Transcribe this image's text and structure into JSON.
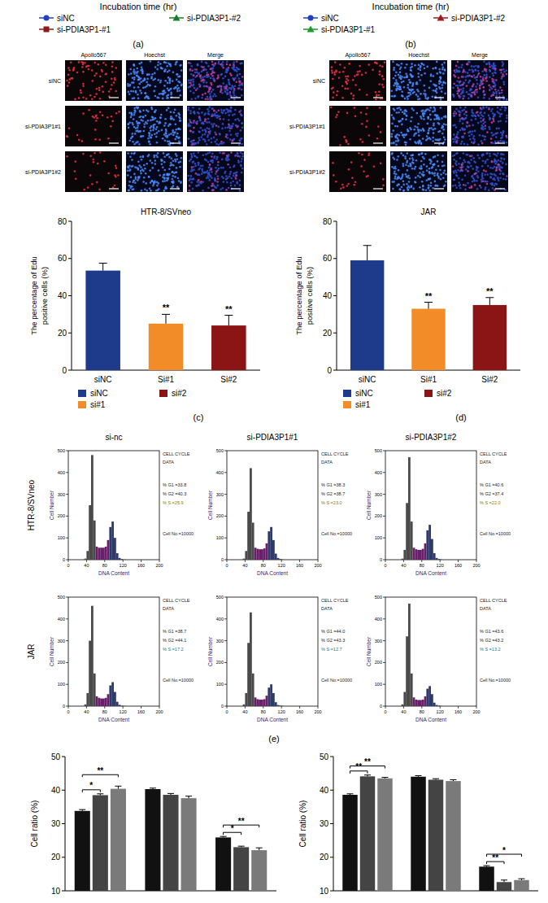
{
  "header_panels": [
    {
      "x_label": "Incubation time (hr)",
      "letter": "(a)",
      "legend": [
        {
          "name": "siNC",
          "color": "#2040c0",
          "marker": "circle"
        },
        {
          "name": "si-PDIA3P1-#2",
          "color": "#1a7a2a",
          "marker": "triangle"
        },
        {
          "name": "si-PDIA3P1-#1",
          "color": "#8b1a1a",
          "marker": "square"
        }
      ]
    },
    {
      "x_label": "Incubation time (hr)",
      "letter": "(b)",
      "legend": [
        {
          "name": "siNC",
          "color": "#2040c0",
          "marker": "circle"
        },
        {
          "name": "si-PDIA3P1-#2",
          "color": "#a01818",
          "marker": "triangle"
        },
        {
          "name": "si-PDIA3P1-#1",
          "color": "#1a9a2a",
          "marker": "triangle"
        }
      ]
    }
  ],
  "image_panels": [
    {
      "columns": [
        "Apollo567",
        "Hoechst",
        "Merge"
      ],
      "rows": [
        "siNC",
        "si-PDIA3P1#1",
        "si-PDIA3P1#2"
      ]
    },
    {
      "columns": [
        "Apollo567",
        "Hoechst",
        "Merge"
      ],
      "rows": [
        "siNC",
        "si-PDIA3P1#1",
        "si-PDIA3P1#2"
      ]
    }
  ],
  "flow_cytometry": {
    "columns": [
      "si-nc",
      "si-PDIA3P1#1",
      "si-PDIA3P1#2"
    ],
    "rows": [
      "HTR-8/SVneo",
      "JAR"
    ]
  },
  "panel_letters": [
    "(c)",
    "(d)",
    "(e)"
  ],
  "chart_data": [
    {
      "type": "bar",
      "title": "HTR-8/SVneo",
      "y_label": "The percentage of Edu positive cells (%)",
      "categories": [
        "siNC",
        "Si#1",
        "Si#2"
      ],
      "values": [
        53.5,
        25,
        24
      ],
      "errors": [
        4,
        5,
        5.5
      ],
      "colors": [
        "#1e3a8a",
        "#f28c28",
        "#8b1414"
      ],
      "ylim": [
        0,
        80
      ],
      "yticks": [
        0,
        20,
        40,
        60,
        80
      ],
      "annotations": [
        {
          "category": "Si#1",
          "text": "**"
        },
        {
          "category": "Si#2",
          "text": "**"
        }
      ],
      "legend_labels": [
        "siNC",
        "si#1",
        "si#2"
      ]
    },
    {
      "type": "bar",
      "title": "JAR",
      "y_label": "The percentage of Edu positive cells (%)",
      "categories": [
        "siNC",
        "Si#1",
        "Si#2"
      ],
      "values": [
        59,
        33,
        35
      ],
      "errors": [
        8,
        3.5,
        4
      ],
      "colors": [
        "#1e3a8a",
        "#f28c28",
        "#8b1414"
      ],
      "ylim": [
        0,
        80
      ],
      "yticks": [
        0,
        20,
        40,
        60,
        80
      ],
      "annotations": [
        {
          "category": "Si#1",
          "text": "**"
        },
        {
          "category": "Si#2",
          "text": "**"
        }
      ],
      "legend_labels": [
        "siNC",
        "si#1",
        "si#2"
      ]
    },
    {
      "type": "histogram",
      "x_label": "DNA Content",
      "y_label": "Cell Number",
      "bins": [
        30,
        35,
        40,
        45,
        50,
        55,
        60,
        65,
        70,
        75,
        80,
        85,
        90,
        95,
        100,
        105,
        110,
        115,
        120,
        125,
        130
      ],
      "values": [
        0,
        5,
        40,
        250,
        480,
        180,
        60,
        55,
        55,
        55,
        60,
        90,
        150,
        175,
        100,
        30,
        8,
        3,
        1,
        0
      ],
      "xlim": [
        0,
        200
      ],
      "xticks": [
        0,
        40,
        80,
        120,
        160,
        200
      ],
      "ylim": [
        0,
        500
      ],
      "yticks": [
        0,
        100,
        200,
        300,
        400,
        500
      ],
      "annotations": [
        "CELL CYCLE",
        "DATA",
        "% G1 =33.8",
        "% G2 =40.3",
        "% S =25.9",
        "Cell No.=10000"
      ]
    },
    {
      "type": "histogram",
      "x_label": "DNA Content",
      "y_label": "Cell Number",
      "bins": [
        30,
        35,
        40,
        45,
        50,
        55,
        60,
        65,
        70,
        75,
        80,
        85,
        90,
        95,
        100,
        105,
        110,
        115,
        120,
        125,
        130
      ],
      "values": [
        0,
        5,
        40,
        220,
        420,
        170,
        55,
        50,
        48,
        48,
        52,
        75,
        130,
        150,
        90,
        28,
        8,
        3,
        1,
        0
      ],
      "xlim": [
        0,
        200
      ],
      "xticks": [
        0,
        40,
        80,
        120,
        160,
        200
      ],
      "ylim": [
        0,
        500
      ],
      "yticks": [
        0,
        100,
        200,
        300,
        400,
        500
      ],
      "annotations": [
        "CELL CYCLE",
        "DATA",
        "% G1 =38.3",
        "% G2 =38.7",
        "% S =23.0",
        "Cell No.=10000"
      ]
    },
    {
      "type": "histogram",
      "x_label": "DNA Content",
      "y_label": "Cell Number",
      "bins": [
        30,
        35,
        40,
        45,
        50,
        55,
        60,
        65,
        70,
        75,
        80,
        85,
        90,
        95,
        100,
        105,
        110,
        115,
        120,
        125,
        130
      ],
      "values": [
        0,
        5,
        45,
        260,
        470,
        175,
        55,
        48,
        45,
        45,
        50,
        75,
        135,
        160,
        95,
        30,
        8,
        3,
        1,
        0
      ],
      "xlim": [
        0,
        200
      ],
      "xticks": [
        0,
        40,
        80,
        120,
        160,
        200
      ],
      "ylim": [
        0,
        500
      ],
      "yticks": [
        0,
        100,
        200,
        300,
        400,
        500
      ],
      "annotations": [
        "CELL CYCLE",
        "DATA",
        "% G1 =40.6",
        "% G2 =37.4",
        "% S =22.0",
        "Cell No.=10000"
      ]
    },
    {
      "type": "histogram",
      "x_label": "DNA Content",
      "y_label": "Cell Number",
      "bins": [
        30,
        35,
        40,
        45,
        50,
        55,
        60,
        65,
        70,
        75,
        80,
        85,
        90,
        95,
        100,
        105,
        110,
        115,
        120,
        125,
        130
      ],
      "values": [
        0,
        8,
        60,
        300,
        460,
        150,
        45,
        38,
        35,
        35,
        38,
        55,
        95,
        110,
        65,
        20,
        6,
        2,
        1,
        0
      ],
      "xlim": [
        0,
        200
      ],
      "xticks": [
        0,
        40,
        80,
        120,
        160,
        200
      ],
      "ylim": [
        0,
        500
      ],
      "yticks": [
        0,
        100,
        200,
        300,
        400,
        500
      ],
      "annotations": [
        "CELL CYCLE",
        "DATA",
        "% G1 =38.7",
        "% G2 =44.1",
        "% S =17.2",
        "Cell No.=10000"
      ]
    },
    {
      "type": "histogram",
      "x_label": "DNA Content",
      "y_label": "Cell Number",
      "bins": [
        30,
        35,
        40,
        45,
        50,
        55,
        60,
        65,
        70,
        75,
        80,
        85,
        90,
        95,
        100,
        105,
        110,
        115,
        120,
        125,
        130
      ],
      "values": [
        0,
        8,
        60,
        290,
        430,
        150,
        40,
        32,
        30,
        30,
        32,
        48,
        85,
        100,
        60,
        18,
        5,
        2,
        1,
        0
      ],
      "xlim": [
        0,
        200
      ],
      "xticks": [
        0,
        40,
        80,
        120,
        160,
        200
      ],
      "ylim": [
        0,
        500
      ],
      "yticks": [
        0,
        100,
        200,
        300,
        400,
        500
      ],
      "annotations": [
        "CELL CYCLE",
        "DATA",
        "% G1 =44.0",
        "% G2 =43.3",
        "% S =12.7",
        "Cell No.=10000"
      ]
    },
    {
      "type": "histogram",
      "x_label": "DNA Content",
      "y_label": "Cell Number",
      "bins": [
        30,
        35,
        40,
        45,
        50,
        55,
        60,
        65,
        70,
        75,
        80,
        85,
        90,
        95,
        100,
        105,
        110,
        115,
        120,
        125,
        130
      ],
      "values": [
        0,
        8,
        65,
        320,
        470,
        150,
        40,
        30,
        28,
        28,
        30,
        45,
        80,
        92,
        55,
        16,
        5,
        2,
        1,
        0
      ],
      "xlim": [
        0,
        200
      ],
      "xticks": [
        0,
        40,
        80,
        120,
        160,
        200
      ],
      "ylim": [
        0,
        500
      ],
      "yticks": [
        0,
        100,
        200,
        300,
        400,
        500
      ],
      "annotations": [
        "CELL CYCLE",
        "DATA",
        "% G1 =43.6",
        "% G2 =43.2",
        "% S =13.2",
        "Cell No.=10000"
      ]
    },
    {
      "type": "bar",
      "y_label": "Cell ratio (%)",
      "categories": [
        null,
        null,
        null
      ],
      "series": [
        {
          "color": "#111111",
          "values": [
            33.8,
            40.3,
            25.9
          ],
          "errors": [
            0.4,
            0.3,
            0.3
          ]
        },
        {
          "color": "#444444",
          "values": [
            38.5,
            38.6,
            23.0
          ],
          "errors": [
            0.4,
            0.4,
            0.3
          ]
        },
        {
          "color": "#7a7a7a",
          "values": [
            40.4,
            37.6,
            22.1
          ],
          "errors": [
            0.8,
            0.6,
            0.7
          ]
        }
      ],
      "ylim": [
        10,
        50
      ],
      "yticks": [
        10,
        20,
        30,
        40,
        50
      ],
      "annotations": [
        {
          "category_index": 0,
          "pair": [
            0,
            1
          ],
          "text": "*"
        },
        {
          "category_index": 0,
          "pair": [
            0,
            2
          ],
          "text": "**"
        },
        {
          "category_index": 2,
          "pair": [
            0,
            1
          ],
          "text": "*"
        },
        {
          "category_index": 2,
          "pair": [
            0,
            2
          ],
          "text": "**"
        }
      ]
    },
    {
      "type": "bar",
      "y_label": "Cell ratio (%)",
      "categories": [
        null,
        null,
        null
      ],
      "series": [
        {
          "color": "#111111",
          "values": [
            38.6,
            44.0,
            17.2
          ],
          "errors": [
            0.3,
            0.3,
            0.3
          ]
        },
        {
          "color": "#444444",
          "values": [
            44.1,
            43.1,
            12.6
          ],
          "errors": [
            0.4,
            0.3,
            0.6
          ]
        },
        {
          "color": "#7a7a7a",
          "values": [
            43.5,
            42.7,
            13.2
          ],
          "errors": [
            0.3,
            0.4,
            0.4
          ]
        }
      ],
      "ylim": [
        10,
        50
      ],
      "yticks": [
        10,
        20,
        30,
        40,
        50
      ],
      "annotations": [
        {
          "category_index": 0,
          "pair": [
            0,
            1
          ],
          "text": "**"
        },
        {
          "category_index": 0,
          "pair": [
            0,
            2
          ],
          "text": "**"
        },
        {
          "category_index": 2,
          "pair": [
            0,
            1
          ],
          "text": "**"
        },
        {
          "category_index": 2,
          "pair": [
            0,
            2
          ],
          "text": "*"
        }
      ]
    }
  ]
}
